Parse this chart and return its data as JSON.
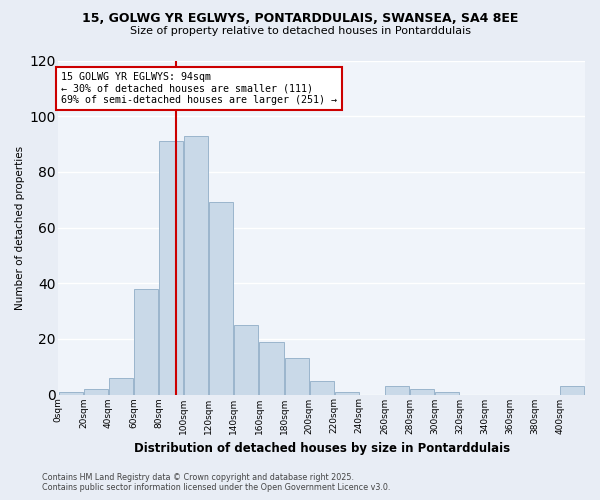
{
  "title_line1": "15, GOLWG YR EGLWYS, PONTARDDULAIS, SWANSEA, SA4 8EE",
  "title_line2": "Size of property relative to detached houses in Pontarddulais",
  "xlabel": "Distribution of detached houses by size in Pontarddulais",
  "ylabel": "Number of detached properties",
  "bin_edges": [
    0,
    20,
    40,
    60,
    80,
    100,
    120,
    140,
    160,
    180,
    200,
    220,
    240,
    260,
    280,
    300,
    320,
    340,
    360,
    380,
    400,
    420
  ],
  "bar_heights": [
    1,
    2,
    6,
    38,
    91,
    93,
    69,
    25,
    19,
    13,
    5,
    1,
    0,
    3,
    2,
    1,
    0,
    0,
    0,
    0,
    3,
    0
  ],
  "bar_color": "#c9d9e8",
  "bar_edge_color": "#9ab5cc",
  "property_size": 94,
  "vline_color": "#cc0000",
  "annotation_text": "15 GOLWG YR EGLWYS: 94sqm\n← 30% of detached houses are smaller (111)\n69% of semi-detached houses are larger (251) →",
  "annotation_box_color": "#ffffff",
  "annotation_box_edge": "#cc0000",
  "ylim": [
    0,
    120
  ],
  "xlim": [
    0,
    420
  ],
  "tick_positions": [
    0,
    20,
    40,
    60,
    80,
    100,
    120,
    140,
    160,
    180,
    200,
    220,
    240,
    260,
    280,
    300,
    320,
    340,
    360,
    380,
    400
  ],
  "tick_labels": [
    "0sqm",
    "20sqm",
    "40sqm",
    "60sqm",
    "80sqm",
    "100sqm",
    "120sqm",
    "140sqm",
    "160sqm",
    "180sqm",
    "200sqm",
    "220sqm",
    "240sqm",
    "260sqm",
    "280sqm",
    "300sqm",
    "320sqm",
    "340sqm",
    "360sqm",
    "380sqm",
    "400sqm"
  ],
  "footnote": "Contains HM Land Registry data © Crown copyright and database right 2025.\nContains public sector information licensed under the Open Government Licence v3.0.",
  "bg_color": "#e8edf5",
  "plot_bg_color": "#f0f4fa"
}
